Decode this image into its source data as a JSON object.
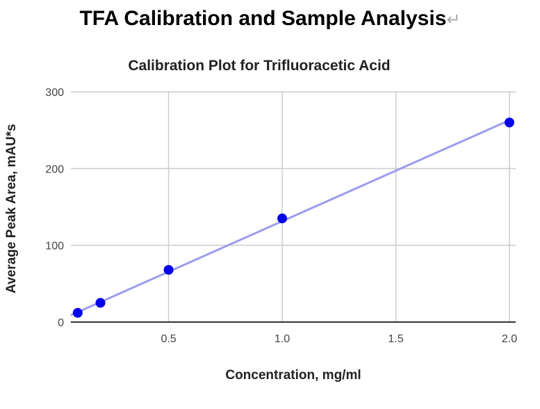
{
  "page": {
    "title": "TFA Calibration and Sample Analysis",
    "return_mark": "↵"
  },
  "chart_data": {
    "type": "scatter",
    "title": "Calibration Plot for Trifluoracetic Acid",
    "xlabel": "Concentration, mg/ml",
    "ylabel": "Average Peak Area, mAU*s",
    "xlim": [
      0.07,
      2.0
    ],
    "ylim": [
      0,
      300
    ],
    "xticks": [
      0.5,
      1.0,
      1.5,
      2.0
    ],
    "xtick_labels": [
      "0.5",
      "1.0",
      "1.5",
      "2.0"
    ],
    "yticks": [
      0,
      100,
      200,
      300
    ],
    "ytick_labels": [
      "0",
      "100",
      "200",
      "300"
    ],
    "grid": true,
    "points": {
      "x": [
        0.1,
        0.2,
        0.5,
        1.0,
        2.0
      ],
      "y": [
        12,
        25,
        68,
        135,
        260
      ]
    },
    "trendline": {
      "x": [
        0.07,
        2.0
      ],
      "y": [
        9,
        263
      ]
    },
    "colors": {
      "points": "#0000ee",
      "trendline": "#9c9cee",
      "grid": "#cccccc",
      "axis": "#333333"
    }
  }
}
